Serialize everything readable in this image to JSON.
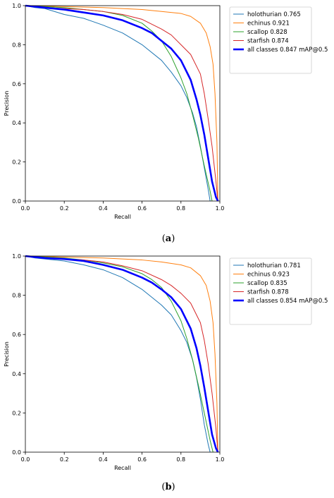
{
  "chart_data": [
    {
      "type": "line",
      "caption_paren_open": "(",
      "caption_letter": "a",
      "caption_paren_close": ")",
      "xlabel": "Recall",
      "ylabel": "Precision",
      "xlim": [
        0,
        1
      ],
      "ylim": [
        0,
        1
      ],
      "xticks": [
        "0.0",
        "0.2",
        "0.4",
        "0.6",
        "0.8",
        "1.0"
      ],
      "yticks": [
        "0.0",
        "0.2",
        "0.4",
        "0.6",
        "0.8",
        "1.0"
      ],
      "legend_position": "outside-right-top",
      "grid": false,
      "series": [
        {
          "name": "holothurian 0.765",
          "color": "#1f77b4",
          "width": 1,
          "points": [
            [
              0,
              1.0
            ],
            [
              0.05,
              0.99
            ],
            [
              0.1,
              0.985
            ],
            [
              0.2,
              0.955
            ],
            [
              0.3,
              0.935
            ],
            [
              0.4,
              0.9
            ],
            [
              0.5,
              0.86
            ],
            [
              0.6,
              0.8
            ],
            [
              0.7,
              0.72
            ],
            [
              0.75,
              0.66
            ],
            [
              0.8,
              0.59
            ],
            [
              0.83,
              0.53
            ],
            [
              0.86,
              0.45
            ],
            [
              0.88,
              0.38
            ],
            [
              0.9,
              0.28
            ],
            [
              0.92,
              0.17
            ],
            [
              0.94,
              0.06
            ],
            [
              0.95,
              0.0
            ]
          ]
        },
        {
          "name": "echinus 0.921",
          "color": "#ff7f0e",
          "width": 1,
          "points": [
            [
              0,
              1.0
            ],
            [
              0.2,
              0.995
            ],
            [
              0.4,
              0.99
            ],
            [
              0.6,
              0.98
            ],
            [
              0.7,
              0.97
            ],
            [
              0.8,
              0.96
            ],
            [
              0.85,
              0.945
            ],
            [
              0.9,
              0.91
            ],
            [
              0.93,
              0.86
            ],
            [
              0.95,
              0.79
            ],
            [
              0.965,
              0.7
            ],
            [
              0.975,
              0.55
            ],
            [
              0.985,
              0.3
            ],
            [
              0.99,
              0.0
            ]
          ]
        },
        {
          "name": "scallop 0.828",
          "color": "#2ca02c",
          "width": 1,
          "points": [
            [
              0,
              1.0
            ],
            [
              0.1,
              0.995
            ],
            [
              0.2,
              0.99
            ],
            [
              0.3,
              0.98
            ],
            [
              0.4,
              0.97
            ],
            [
              0.5,
              0.95
            ],
            [
              0.6,
              0.91
            ],
            [
              0.65,
              0.87
            ],
            [
              0.7,
              0.82
            ],
            [
              0.75,
              0.74
            ],
            [
              0.8,
              0.63
            ],
            [
              0.83,
              0.55
            ],
            [
              0.86,
              0.44
            ],
            [
              0.89,
              0.32
            ],
            [
              0.92,
              0.18
            ],
            [
              0.95,
              0.05
            ],
            [
              0.96,
              0.0
            ]
          ]
        },
        {
          "name": "starfish 0.874",
          "color": "#d62728",
          "width": 1,
          "points": [
            [
              0,
              1.0
            ],
            [
              0.1,
              0.99
            ],
            [
              0.2,
              0.985
            ],
            [
              0.3,
              0.98
            ],
            [
              0.4,
              0.97
            ],
            [
              0.5,
              0.955
            ],
            [
              0.6,
              0.93
            ],
            [
              0.7,
              0.88
            ],
            [
              0.75,
              0.85
            ],
            [
              0.8,
              0.8
            ],
            [
              0.85,
              0.75
            ],
            [
              0.9,
              0.65
            ],
            [
              0.92,
              0.55
            ],
            [
              0.94,
              0.42
            ],
            [
              0.96,
              0.28
            ],
            [
              0.98,
              0.1
            ],
            [
              0.99,
              0.0
            ]
          ]
        },
        {
          "name": "all classes 0.847 mAP@0.5",
          "color": "#0000ff",
          "width": 2.6,
          "points": [
            [
              0,
              1.0
            ],
            [
              0.1,
              0.99
            ],
            [
              0.2,
              0.98
            ],
            [
              0.3,
              0.965
            ],
            [
              0.4,
              0.95
            ],
            [
              0.5,
              0.925
            ],
            [
              0.6,
              0.885
            ],
            [
              0.65,
              0.86
            ],
            [
              0.7,
              0.82
            ],
            [
              0.75,
              0.78
            ],
            [
              0.8,
              0.72
            ],
            [
              0.85,
              0.62
            ],
            [
              0.88,
              0.52
            ],
            [
              0.9,
              0.44
            ],
            [
              0.92,
              0.34
            ],
            [
              0.94,
              0.22
            ],
            [
              0.96,
              0.1
            ],
            [
              0.98,
              0.02
            ],
            [
              0.99,
              0.0
            ]
          ]
        }
      ]
    },
    {
      "type": "line",
      "caption_paren_open": "(",
      "caption_letter": "b",
      "caption_paren_close": ")",
      "xlabel": "Recall",
      "ylabel": "Precision",
      "xlim": [
        0,
        1
      ],
      "ylim": [
        0,
        1
      ],
      "xticks": [
        "0.0",
        "0.2",
        "0.4",
        "0.6",
        "0.8",
        "1.0"
      ],
      "yticks": [
        "0.0",
        "0.2",
        "0.4",
        "0.6",
        "0.8",
        "1.0"
      ],
      "legend_position": "outside-right-top",
      "grid": false,
      "series": [
        {
          "name": "holothurian 0.781",
          "color": "#1f77b4",
          "width": 1,
          "points": [
            [
              0,
              1.0
            ],
            [
              0.05,
              0.99
            ],
            [
              0.1,
              0.985
            ],
            [
              0.2,
              0.975
            ],
            [
              0.3,
              0.955
            ],
            [
              0.4,
              0.93
            ],
            [
              0.5,
              0.89
            ],
            [
              0.6,
              0.83
            ],
            [
              0.7,
              0.75
            ],
            [
              0.75,
              0.7
            ],
            [
              0.8,
              0.62
            ],
            [
              0.83,
              0.56
            ],
            [
              0.86,
              0.47
            ],
            [
              0.88,
              0.38
            ],
            [
              0.9,
              0.27
            ],
            [
              0.92,
              0.14
            ],
            [
              0.94,
              0.04
            ],
            [
              0.95,
              0.0
            ]
          ]
        },
        {
          "name": "echinus 0.923",
          "color": "#ff7f0e",
          "width": 1,
          "points": [
            [
              0,
              1.0
            ],
            [
              0.2,
              0.995
            ],
            [
              0.4,
              0.99
            ],
            [
              0.6,
              0.98
            ],
            [
              0.7,
              0.97
            ],
            [
              0.8,
              0.955
            ],
            [
              0.85,
              0.94
            ],
            [
              0.9,
              0.9
            ],
            [
              0.93,
              0.85
            ],
            [
              0.95,
              0.77
            ],
            [
              0.965,
              0.66
            ],
            [
              0.975,
              0.5
            ],
            [
              0.985,
              0.25
            ],
            [
              0.99,
              0.0
            ]
          ]
        },
        {
          "name": "scallop 0.835",
          "color": "#2ca02c",
          "width": 1,
          "points": [
            [
              0,
              1.0
            ],
            [
              0.1,
              0.995
            ],
            [
              0.2,
              0.99
            ],
            [
              0.3,
              0.98
            ],
            [
              0.4,
              0.965
            ],
            [
              0.5,
              0.945
            ],
            [
              0.6,
              0.91
            ],
            [
              0.65,
              0.88
            ],
            [
              0.7,
              0.84
            ],
            [
              0.75,
              0.77
            ],
            [
              0.8,
              0.67
            ],
            [
              0.83,
              0.58
            ],
            [
              0.86,
              0.47
            ],
            [
              0.89,
              0.34
            ],
            [
              0.92,
              0.2
            ],
            [
              0.95,
              0.06
            ],
            [
              0.965,
              0.0
            ]
          ]
        },
        {
          "name": "starfish 0.878",
          "color": "#d62728",
          "width": 1,
          "points": [
            [
              0,
              1.0
            ],
            [
              0.1,
              0.99
            ],
            [
              0.2,
              0.985
            ],
            [
              0.3,
              0.98
            ],
            [
              0.4,
              0.97
            ],
            [
              0.5,
              0.95
            ],
            [
              0.6,
              0.925
            ],
            [
              0.7,
              0.88
            ],
            [
              0.75,
              0.85
            ],
            [
              0.8,
              0.81
            ],
            [
              0.85,
              0.76
            ],
            [
              0.9,
              0.66
            ],
            [
              0.92,
              0.57
            ],
            [
              0.94,
              0.45
            ],
            [
              0.96,
              0.3
            ],
            [
              0.98,
              0.12
            ],
            [
              0.99,
              0.0
            ]
          ]
        },
        {
          "name": "all classes 0.854 mAP@0.5",
          "color": "#0000ff",
          "width": 2.6,
          "points": [
            [
              0,
              1.0
            ],
            [
              0.1,
              0.99
            ],
            [
              0.2,
              0.985
            ],
            [
              0.3,
              0.975
            ],
            [
              0.4,
              0.955
            ],
            [
              0.5,
              0.93
            ],
            [
              0.6,
              0.89
            ],
            [
              0.65,
              0.865
            ],
            [
              0.7,
              0.83
            ],
            [
              0.75,
              0.79
            ],
            [
              0.8,
              0.73
            ],
            [
              0.85,
              0.63
            ],
            [
              0.88,
              0.53
            ],
            [
              0.9,
              0.44
            ],
            [
              0.92,
              0.33
            ],
            [
              0.94,
              0.21
            ],
            [
              0.96,
              0.09
            ],
            [
              0.98,
              0.02
            ],
            [
              0.99,
              0.0
            ]
          ]
        }
      ]
    }
  ]
}
